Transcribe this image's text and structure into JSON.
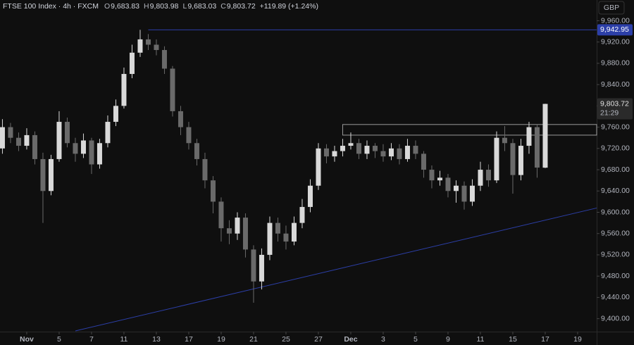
{
  "chart_data": {
    "type": "candlestick",
    "title": "FTSE 100 Index · 4h · FXCM",
    "header_values": [
      {
        "prefix": "O",
        "value": 9683.83,
        "label": "9,683.83"
      },
      {
        "prefix": "H",
        "value": 9803.98,
        "label": "9,803.98"
      },
      {
        "prefix": "L",
        "value": 9683.03,
        "label": "9,683.03"
      },
      {
        "prefix": "C",
        "value": 9803.72,
        "label": "9,803.72"
      }
    ],
    "change": {
      "value": 119.89,
      "label": "+119.89 (+1.24%)"
    },
    "currency": "GBP",
    "up_color": "#d9d9d9",
    "down_color": "#6a6a6a",
    "x": [
      0,
      1,
      2,
      3,
      4,
      5,
      6,
      7,
      8,
      9,
      10,
      11,
      12,
      13,
      14,
      15,
      16,
      17,
      18,
      19,
      20,
      21,
      22,
      23,
      24,
      25,
      26,
      27,
      28,
      29,
      30,
      31,
      32,
      33,
      34,
      35,
      36,
      37,
      38,
      39,
      40,
      41,
      42,
      43,
      44,
      45,
      46,
      47,
      48,
      49,
      50,
      51,
      52,
      53,
      54,
      55,
      56,
      57,
      58,
      59,
      60,
      61,
      62,
      63,
      64,
      65,
      66,
      67
    ],
    "open": [
      9720,
      9760,
      9740,
      9725,
      9745,
      9700,
      9640,
      9700,
      9770,
      9730,
      9710,
      9735,
      9690,
      9730,
      9770,
      9800,
      9860,
      9900,
      9925,
      9915,
      9905,
      9870,
      9790,
      9760,
      9730,
      9700,
      9660,
      9620,
      9570,
      9560,
      9590,
      9530,
      9470,
      9520,
      9580,
      9560,
      9545,
      9580,
      9610,
      9650,
      9720,
      9705,
      9715,
      9725,
      9730,
      9710,
      9725,
      9715,
      9705,
      9720,
      9700,
      9725,
      9710,
      9680,
      9660,
      9665,
      9640,
      9650,
      9620,
      9650,
      9680,
      9660,
      9740,
      9730,
      9670,
      9725,
      9760,
      9683.83
    ],
    "high": [
      9775,
      9768,
      9750,
      9758,
      9752,
      9712,
      9708,
      9790,
      9778,
      9740,
      9748,
      9740,
      9738,
      9782,
      9812,
      9872,
      9915,
      9942.95,
      9935,
      9925,
      9912,
      9875,
      9800,
      9770,
      9738,
      9712,
      9668,
      9628,
      9585,
      9600,
      9598,
      9538,
      9532,
      9592,
      9590,
      9575,
      9592,
      9625,
      9662,
      9730,
      9728,
      9725,
      9738,
      9750,
      9738,
      9735,
      9730,
      9728,
      9730,
      9728,
      9738,
      9735,
      9715,
      9688,
      9678,
      9672,
      9660,
      9658,
      9662,
      9695,
      9690,
      9752,
      9762,
      9738,
      9738,
      9770,
      9765,
      9803.98
    ],
    "low": [
      9710,
      9730,
      9715,
      9718,
      9690,
      9580,
      9632,
      9695,
      9722,
      9695,
      9702,
      9672,
      9682,
      9722,
      9762,
      9795,
      9852,
      9892,
      9905,
      9895,
      9860,
      9780,
      9745,
      9718,
      9688,
      9645,
      9598,
      9545,
      9540,
      9548,
      9515,
      9430,
      9455,
      9510,
      9545,
      9530,
      9538,
      9570,
      9600,
      9642,
      9692,
      9695,
      9705,
      9718,
      9700,
      9700,
      9702,
      9695,
      9698,
      9690,
      9695,
      9700,
      9665,
      9645,
      9650,
      9628,
      9618,
      9605,
      9612,
      9640,
      9648,
      9655,
      9715,
      9635,
      9660,
      9710,
      9665,
      9683.03
    ],
    "close": [
      9760,
      9740,
      9725,
      9745,
      9700,
      9640,
      9700,
      9770,
      9730,
      9710,
      9735,
      9690,
      9730,
      9770,
      9800,
      9860,
      9900,
      9925,
      9915,
      9905,
      9870,
      9790,
      9760,
      9730,
      9700,
      9660,
      9620,
      9570,
      9560,
      9590,
      9530,
      9470,
      9520,
      9580,
      9560,
      9545,
      9580,
      9610,
      9650,
      9720,
      9705,
      9715,
      9725,
      9730,
      9710,
      9725,
      9715,
      9705,
      9720,
      9700,
      9725,
      9710,
      9680,
      9660,
      9665,
      9640,
      9650,
      9620,
      9650,
      9680,
      9660,
      9740,
      9730,
      9670,
      9725,
      9760,
      9684,
      9803.72
    ],
    "xlim": [
      -0.3,
      73.35
    ],
    "ylim": [
      9377,
      9999
    ],
    "yticks": [
      {
        "value": 9400,
        "label": "9,400.00"
      },
      {
        "value": 9440,
        "label": "9,440.00"
      },
      {
        "value": 9480,
        "label": "9,480.00"
      },
      {
        "value": 9520,
        "label": "9,520.00"
      },
      {
        "value": 9560,
        "label": "9,560.00"
      },
      {
        "value": 9600,
        "label": "9,600.00"
      },
      {
        "value": 9640,
        "label": "9,640.00"
      },
      {
        "value": 9680,
        "label": "9,680.00"
      },
      {
        "value": 9720,
        "label": "9,720.00"
      },
      {
        "value": 9760,
        "label": "9,760.00"
      },
      {
        "value": 9800,
        "label": "9,800.00"
      },
      {
        "value": 9840,
        "label": "9,840.00"
      },
      {
        "value": 9880,
        "label": "9,880.00"
      },
      {
        "value": 9920,
        "label": "9,920.00"
      },
      {
        "value": 9960,
        "label": "9,960.00"
      }
    ],
    "xticks": [
      {
        "value": 3,
        "label": "Nov"
      },
      {
        "value": 7,
        "label": "5"
      },
      {
        "value": 11,
        "label": "7"
      },
      {
        "value": 15,
        "label": "11"
      },
      {
        "value": 19,
        "label": "13"
      },
      {
        "value": 23,
        "label": "17"
      },
      {
        "value": 27,
        "label": "19"
      },
      {
        "value": 31,
        "label": "21"
      },
      {
        "value": 35,
        "label": "25"
      },
      {
        "value": 39,
        "label": "27"
      },
      {
        "value": 43,
        "label": "Dec"
      },
      {
        "value": 47,
        "label": "3"
      },
      {
        "value": 51,
        "label": "5"
      },
      {
        "value": 55,
        "label": "9"
      },
      {
        "value": 59,
        "label": "11"
      },
      {
        "value": 63,
        "label": "15"
      },
      {
        "value": 67,
        "label": "17"
      },
      {
        "value": 71,
        "label": "19"
      }
    ],
    "level": {
      "value": 9942.95,
      "label": "9,942.95",
      "x_start": 18,
      "color": "#2c3fa8"
    },
    "zone": {
      "low": 9745,
      "high": 9765,
      "x_start": 42
    },
    "trendline": {
      "x": [
        9,
        73.35
      ],
      "y": [
        9377,
        9608
      ],
      "color": "#2c3fa8"
    },
    "last_price": {
      "value": 9803.72,
      "label": "9,803.72",
      "countdown": "21:29"
    }
  }
}
